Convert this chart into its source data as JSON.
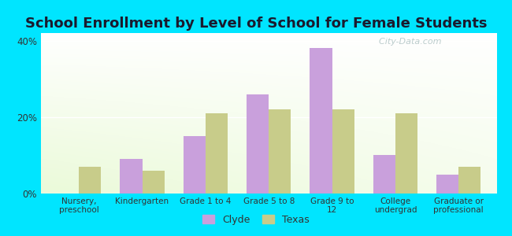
{
  "title": "School Enrollment by Level of School for Female Students",
  "categories": [
    "Nursery,\npreschool",
    "Kindergarten",
    "Grade 1 to 4",
    "Grade 5 to 8",
    "Grade 9 to\n12",
    "College\nundergrad",
    "Graduate or\nprofessional"
  ],
  "clyde": [
    0,
    9,
    15,
    26,
    38,
    10,
    5
  ],
  "texas": [
    7,
    6,
    21,
    22,
    22,
    21,
    7
  ],
  "clyde_color": "#c9a0dc",
  "texas_color": "#c8cc8a",
  "background_color": "#00e5ff",
  "ylim": [
    0,
    42
  ],
  "yticks": [
    0,
    20,
    40
  ],
  "ytick_labels": [
    "0%",
    "20%",
    "40%"
  ],
  "bar_width": 0.35,
  "legend_labels": [
    "Clyde",
    "Texas"
  ],
  "title_fontsize": 13,
  "title_color": "#1a1a2e"
}
